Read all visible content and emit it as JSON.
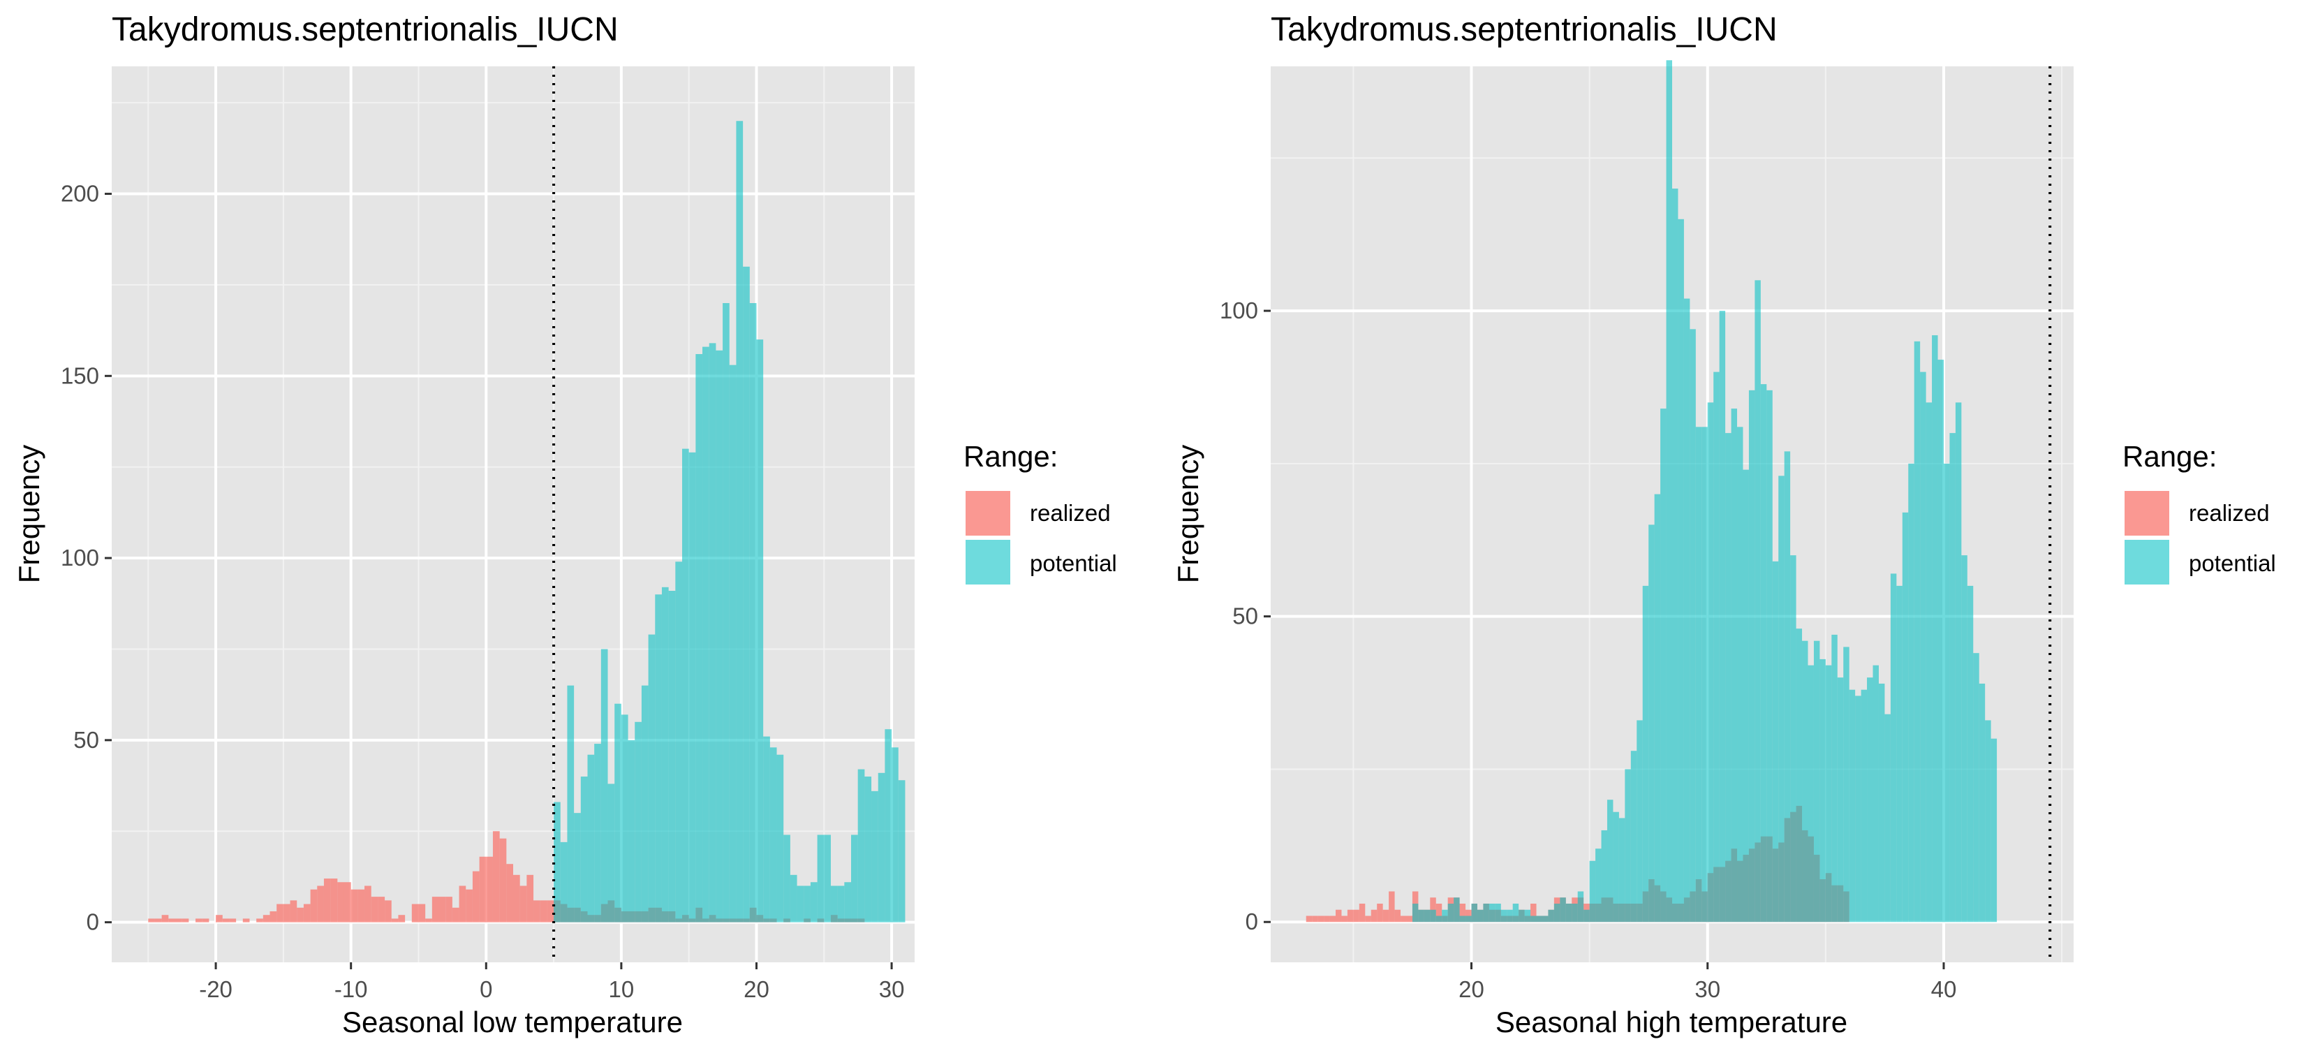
{
  "legend": {
    "title": "Range:",
    "entries": [
      {
        "label": "realized",
        "color": "#F8766D"
      },
      {
        "label": "potential",
        "color": "#00BFC4"
      }
    ]
  },
  "colors": {
    "panel_background": "#E5E5E5",
    "grid": "#FFFFFF",
    "tick_label": "#4D4D4D",
    "threshold_line": "#000000"
  },
  "chart_data": [
    {
      "type": "histogram",
      "title": "Takydromus.septentrionalis_IUCN",
      "xlabel": "Seasonal low temperature",
      "ylabel": "Frequency",
      "xlim": [
        -27.7,
        31.7
      ],
      "ylim": [
        -11,
        235
      ],
      "x_ticks": [
        -20,
        -10,
        0,
        10,
        20,
        30
      ],
      "y_ticks": [
        0,
        50,
        100,
        150,
        200
      ],
      "grid": true,
      "legend_position": "right",
      "bin_width": 0.5,
      "vline": {
        "x": 5.0,
        "style": "dotted"
      },
      "series": [
        {
          "name": "realized",
          "color": "#F8766D",
          "bin_start": -25.0,
          "values": [
            1,
            1,
            2,
            1,
            1,
            1,
            0,
            1,
            1,
            0,
            2,
            1,
            1,
            0,
            1,
            0,
            1,
            2,
            3,
            5,
            5,
            6,
            4,
            5,
            9,
            10,
            12,
            12,
            11,
            11,
            9,
            9,
            10,
            7,
            7,
            6,
            1,
            2,
            0,
            5,
            5,
            1,
            7,
            7,
            7,
            4,
            10,
            9,
            14,
            18,
            18,
            25,
            23,
            16,
            13,
            10,
            13,
            6,
            6,
            6,
            6,
            5,
            4,
            4,
            3,
            2,
            2,
            5,
            6,
            4,
            3,
            3,
            3,
            3,
            4,
            4,
            3,
            3,
            1,
            2,
            1,
            4,
            1,
            2,
            1,
            1,
            1,
            1,
            1,
            4,
            2,
            1,
            1,
            0,
            1,
            0,
            0,
            1,
            0,
            1,
            0,
            2,
            1,
            1,
            1,
            1
          ]
        },
        {
          "name": "potential",
          "color": "#00BFC4",
          "bin_start": 4.5,
          "values": [
            0,
            33,
            22,
            65,
            30,
            40,
            46,
            49,
            75,
            38,
            60,
            57,
            50,
            55,
            65,
            79,
            90,
            92,
            91,
            99,
            130,
            129,
            156,
            158,
            159,
            157,
            170,
            153,
            220,
            180,
            170,
            160,
            51,
            48,
            46,
            24,
            13,
            10,
            10,
            11,
            24,
            24,
            10,
            10,
            11,
            24,
            42,
            40,
            36,
            41,
            53,
            48,
            39
          ]
        }
      ]
    },
    {
      "type": "histogram",
      "title": "Takydromus.septentrionalis_IUCN",
      "xlabel": "Seasonal high temperature",
      "ylabel": "Frequency",
      "xlim": [
        11.5,
        45.5
      ],
      "ylim": [
        -6.6,
        140
      ],
      "x_ticks": [
        20,
        30,
        40
      ],
      "y_ticks": [
        0,
        50,
        100
      ],
      "grid": true,
      "legend_position": "right",
      "bin_width": 0.25,
      "vline": {
        "x": 44.5,
        "style": "dotted"
      },
      "series": [
        {
          "name": "realized",
          "color": "#F8766D",
          "bin_start": 13.0,
          "values": [
            1,
            1,
            1,
            1,
            1,
            2,
            1,
            2,
            2,
            3,
            1,
            2,
            3,
            2,
            5,
            2,
            1,
            1,
            5,
            2,
            2,
            4,
            3,
            1,
            4,
            4,
            3,
            2,
            3,
            2,
            3,
            2,
            2,
            1,
            1,
            1,
            2,
            1,
            3,
            1,
            1,
            2,
            4,
            4,
            3,
            4,
            4,
            3,
            3,
            3,
            4,
            4,
            3,
            3,
            3,
            3,
            3,
            5,
            7,
            6,
            5,
            4,
            3,
            3,
            4,
            5,
            7,
            5,
            8,
            9,
            9,
            10,
            12,
            10,
            11,
            12,
            13,
            14,
            14,
            12,
            13,
            17,
            18,
            19,
            15,
            14,
            11,
            7,
            8,
            6,
            6,
            5
          ]
        },
        {
          "name": "potential",
          "color": "#00BFC4",
          "bin_start": 17.5,
          "values": [
            3,
            2,
            2,
            2,
            1,
            2,
            3,
            4,
            1,
            1,
            3,
            2,
            3,
            3,
            3,
            2,
            2,
            3,
            2,
            2,
            1,
            1,
            1,
            2,
            3,
            4,
            3,
            3,
            5,
            2,
            10,
            12,
            15,
            20,
            18,
            17,
            25,
            28,
            33,
            55,
            65,
            70,
            84,
            141,
            120,
            115,
            102,
            97,
            81,
            81,
            85,
            90,
            100,
            80,
            84,
            81,
            74,
            87,
            105,
            88,
            87,
            59,
            73,
            77,
            60,
            48,
            46,
            42,
            46,
            43,
            42,
            47,
            40,
            45,
            38,
            37,
            38,
            40,
            42,
            39,
            34,
            57,
            55,
            67,
            75,
            95,
            90,
            85,
            96,
            92,
            75,
            80,
            85,
            60,
            55,
            44,
            39,
            33,
            30
          ]
        }
      ]
    }
  ]
}
